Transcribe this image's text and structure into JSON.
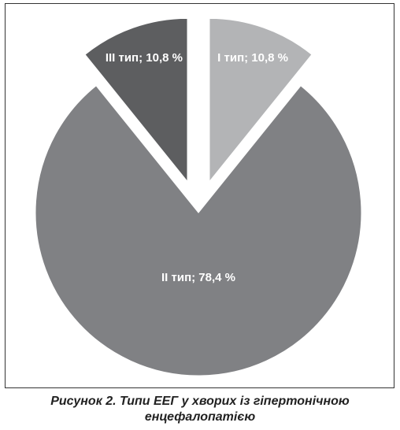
{
  "chart_data": {
    "type": "pie",
    "title": "Рисунок 2. Типи ЕЕГ у хворих із гіпертонічною енцефалопатією",
    "values": [
      10.8,
      78.4,
      10.8
    ],
    "value_labels": [
      "I тип; 10,8 %",
      "II тип; 78,4 %",
      "III тип; 10,8 %"
    ],
    "colors": [
      "#b3b4b6",
      "#808184",
      "#5d5e60"
    ]
  }
}
